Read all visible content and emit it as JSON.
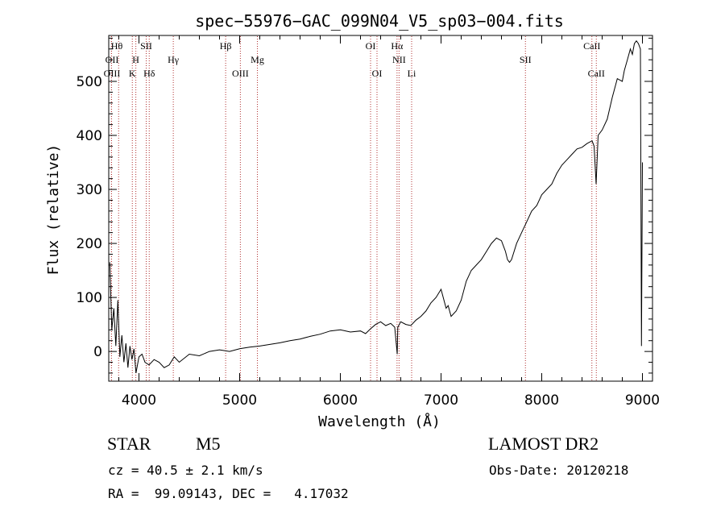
{
  "chart_data": {
    "type": "line",
    "title": "spec−55976−GAC_099N04_V5_sp03−004.fits",
    "xlabel": "Wavelength (Å)",
    "ylabel": "Flux (relative)",
    "xlim": [
      3700,
      9100
    ],
    "ylim": [
      -55,
      585
    ],
    "xticks": [
      4000,
      5000,
      6000,
      7000,
      8000,
      9000
    ],
    "yticks": [
      0,
      100,
      200,
      300,
      400,
      500
    ],
    "grid": false,
    "line_color": "#000000",
    "marker_color": "#b03030",
    "series": [
      {
        "x": [
          3710,
          3730,
          3750,
          3770,
          3790,
          3810,
          3830,
          3850,
          3870,
          3890,
          3910,
          3930,
          3950,
          3970,
          4000,
          4030,
          4060,
          4100,
          4150,
          4200,
          4250,
          4300,
          4350,
          4400,
          4500,
          4600,
          4700,
          4800,
          4900,
          5000,
          5100,
          5200,
          5300,
          5400,
          5500,
          5600,
          5700,
          5800,
          5900,
          6000,
          6100,
          6200,
          6250,
          6300,
          6350,
          6400,
          6450,
          6500,
          6540,
          6560,
          6565,
          6570,
          6600,
          6650,
          6700,
          6750,
          6800,
          6850,
          6900,
          6950,
          7000,
          7050,
          7070,
          7100,
          7150,
          7200,
          7250,
          7300,
          7350,
          7400,
          7450,
          7500,
          7550,
          7600,
          7620,
          7640,
          7660,
          7680,
          7700,
          7750,
          7800,
          7850,
          7900,
          7950,
          8000,
          8050,
          8100,
          8150,
          8200,
          8250,
          8300,
          8350,
          8400,
          8450,
          8500,
          8520,
          8540,
          8560,
          8600,
          8650,
          8700,
          8750,
          8800,
          8820,
          8850,
          8880,
          8900,
          8920,
          8940,
          8960,
          8980,
          8990,
          9000
        ],
        "y": [
          165,
          40,
          80,
          10,
          95,
          -10,
          30,
          -20,
          15,
          -30,
          10,
          -15,
          5,
          -40,
          -10,
          -5,
          -20,
          -25,
          -15,
          -20,
          -30,
          -25,
          -10,
          -20,
          -5,
          -8,
          0,
          3,
          0,
          5,
          8,
          10,
          13,
          16,
          20,
          23,
          28,
          32,
          38,
          40,
          36,
          38,
          33,
          42,
          50,
          55,
          48,
          52,
          45,
          5,
          -5,
          45,
          55,
          50,
          48,
          58,
          65,
          75,
          90,
          100,
          115,
          80,
          85,
          65,
          75,
          95,
          130,
          150,
          160,
          170,
          185,
          200,
          210,
          205,
          195,
          185,
          170,
          165,
          170,
          200,
          220,
          240,
          260,
          270,
          290,
          300,
          310,
          330,
          345,
          355,
          365,
          375,
          378,
          385,
          390,
          380,
          310,
          400,
          410,
          430,
          470,
          505,
          500,
          520,
          540,
          560,
          550,
          570,
          575,
          570,
          560,
          10,
          350
        ]
      }
    ],
    "lines": [
      {
        "label": "Hθ",
        "x": 3798
      },
      {
        "label": "OII",
        "x": 3727
      },
      {
        "label": "OIII",
        "x": 3727
      },
      {
        "label": "H",
        "x": 3969
      },
      {
        "label": "K",
        "x": 3934
      },
      {
        "label": "SII",
        "x": 4072
      },
      {
        "label": "Hδ",
        "x": 4102
      },
      {
        "label": "Hγ",
        "x": 4341
      },
      {
        "label": "Hβ",
        "x": 4861
      },
      {
        "label": "OIII",
        "x": 5007
      },
      {
        "label": "Mg",
        "x": 5176
      },
      {
        "label": "OI",
        "x": 6300
      },
      {
        "label": "OI",
        "x": 6364
      },
      {
        "label": "Hα",
        "x": 6563
      },
      {
        "label": "NII",
        "x": 6583
      },
      {
        "label": "Li",
        "x": 6708
      },
      {
        "label": "SII",
        "x": 7838
      },
      {
        "label": "CaII",
        "x": 8498
      },
      {
        "label": "CaII",
        "x": 8542
      }
    ]
  },
  "info": {
    "object_class": "STAR",
    "subclass": "M5",
    "survey": "LAMOST DR2",
    "cz": "cz = 40.5 ± 2.1 km/s",
    "obs_date": "Obs-Date: 20120218",
    "coords": "RA =  99.09143, DEC =   4.17032"
  }
}
